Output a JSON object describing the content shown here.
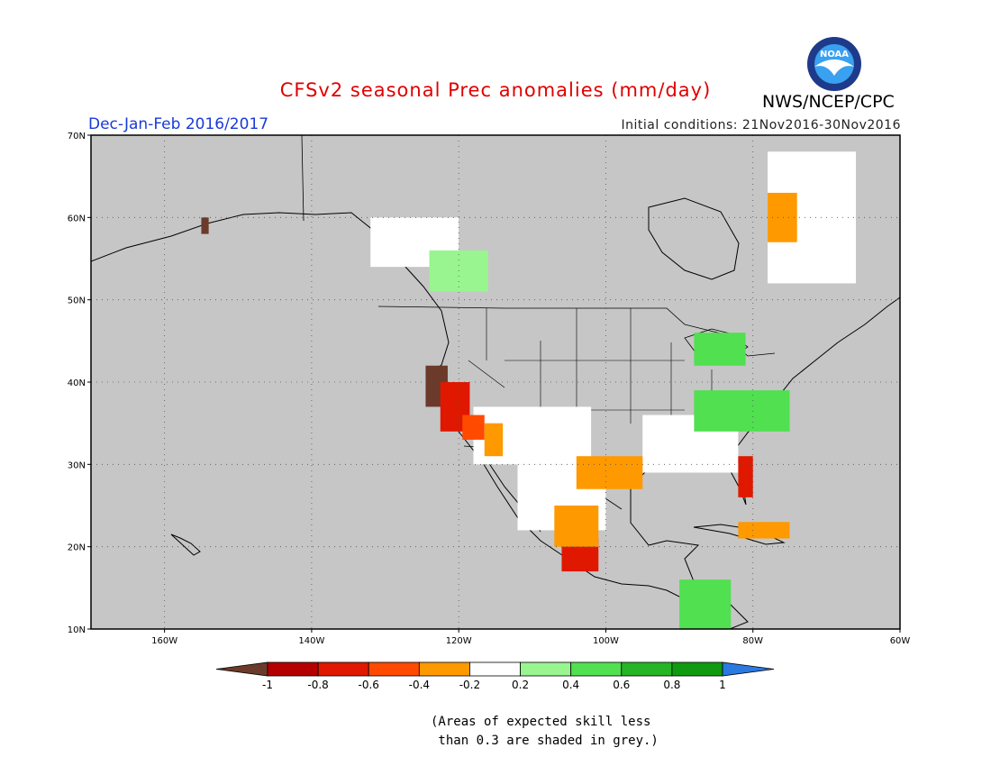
{
  "header": {
    "title": "CFSv2 seasonal Prec anomalies (mm/day)",
    "period": "Dec-Jan-Feb 2016/2017",
    "initial_conditions": "Initial conditions: 21Nov2016-30Nov2016",
    "agency": "NWS/NCEP/CPC",
    "logo_text": "NOAA",
    "logo_colors": {
      "outer": "#1e3a8a",
      "inner": "#3aa0f0",
      "bird": "#ffffff"
    }
  },
  "map": {
    "region": "North America",
    "longitude_range": [
      -170,
      -60
    ],
    "latitude_range": [
      10,
      70
    ],
    "lon_ticks": [
      {
        "value": -160,
        "label": "160W"
      },
      {
        "value": -140,
        "label": "140W"
      },
      {
        "value": -120,
        "label": "120W"
      },
      {
        "value": -100,
        "label": "100W"
      },
      {
        "value": -80,
        "label": "80W"
      },
      {
        "value": -60,
        "label": "60W"
      }
    ],
    "lat_ticks": [
      {
        "value": 10,
        "label": "10N"
      },
      {
        "value": 20,
        "label": "20N"
      },
      {
        "value": 30,
        "label": "30N"
      },
      {
        "value": 40,
        "label": "40N"
      },
      {
        "value": 50,
        "label": "50N"
      },
      {
        "value": 60,
        "label": "60N"
      },
      {
        "value": 70,
        "label": "70N"
      }
    ],
    "grid_lines": true,
    "grey_color": "#c6c6c6",
    "anomaly_patches": [
      {
        "region": "Northern California coast",
        "lon": [
          -124.5,
          -121.5
        ],
        "lat": [
          37,
          42
        ],
        "value": -1.0
      },
      {
        "region": "Central California",
        "lon": [
          -122.5,
          -118.5
        ],
        "lat": [
          34,
          40
        ],
        "value": -0.8
      },
      {
        "region": "Southern California",
        "lon": [
          -119.5,
          -116.5
        ],
        "lat": [
          33,
          36
        ],
        "value": -0.5
      },
      {
        "region": "Arizona",
        "lon": [
          -116.5,
          -114
        ],
        "lat": [
          31,
          35
        ],
        "value": -0.3
      },
      {
        "region": "Southwest Mexico",
        "lon": [
          -106,
          -101
        ],
        "lat": [
          17,
          21
        ],
        "value": -0.8
      },
      {
        "region": "Western Mexico",
        "lon": [
          -107,
          -101
        ],
        "lat": [
          20,
          25
        ],
        "value": -0.3
      },
      {
        "region": "Texas Gulf coast",
        "lon": [
          -104,
          -95
        ],
        "lat": [
          27,
          31
        ],
        "value": -0.3
      },
      {
        "region": "Florida peninsula",
        "lon": [
          -82,
          -80
        ],
        "lat": [
          26,
          31
        ],
        "value": -0.8
      },
      {
        "region": "Cuba",
        "lon": [
          -82,
          -75
        ],
        "lat": [
          21,
          23
        ],
        "value": -0.4
      },
      {
        "region": "Southern Alaska",
        "lon": [
          -155,
          -154
        ],
        "lat": [
          58,
          60
        ],
        "value": -1.0
      },
      {
        "region": "Labrador Sea coast",
        "lon": [
          -78,
          -74
        ],
        "lat": [
          57,
          63
        ],
        "value": -0.3
      },
      {
        "region": "Ohio Valley / Appalachians",
        "lon": [
          -88,
          -75
        ],
        "lat": [
          34,
          39
        ],
        "value": 0.4
      },
      {
        "region": "Great Lakes",
        "lon": [
          -88,
          -81
        ],
        "lat": [
          42,
          46
        ],
        "value": 0.4
      },
      {
        "region": "Western Canada",
        "lon": [
          -124,
          -116
        ],
        "lat": [
          51,
          56
        ],
        "value": 0.3
      },
      {
        "region": "Central America",
        "lon": [
          -90,
          -83
        ],
        "lat": [
          10,
          16
        ],
        "value": 0.5
      }
    ],
    "near_normal_regions": [
      {
        "region": "Interior western US",
        "lon": [
          -118,
          -102
        ],
        "lat": [
          30,
          37
        ],
        "value": 0.0
      },
      {
        "region": "Canadian Prairies",
        "lon": [
          -132,
          -120
        ],
        "lat": [
          54,
          60
        ],
        "value": 0.0
      },
      {
        "region": "Quebec / Labrador",
        "lon": [
          -78,
          -66
        ],
        "lat": [
          52,
          68
        ],
        "value": 0.0
      },
      {
        "region": "Northern Mexico",
        "lon": [
          -112,
          -100
        ],
        "lat": [
          22,
          30
        ],
        "value": 0.0
      },
      {
        "region": "Southeast US",
        "lon": [
          -95,
          -82
        ],
        "lat": [
          29,
          36
        ],
        "value": 0.0
      }
    ]
  },
  "legend": {
    "tick_labels": [
      "-1",
      "-0.8",
      "-0.6",
      "-0.4",
      "-0.2",
      "0.2",
      "0.4",
      "0.6",
      "0.8",
      "1"
    ],
    "colors": [
      "#6b3a2a",
      "#b40000",
      "#e01800",
      "#ff4a00",
      "#ff9900",
      "#ffffff",
      "#98f590",
      "#50e050",
      "#26b526",
      "#0f9a0f",
      "#2a7ae0"
    ]
  },
  "note": {
    "line1": "(Areas of expected skill less",
    "line2": " than 0.3 are shaded in grey.)"
  }
}
